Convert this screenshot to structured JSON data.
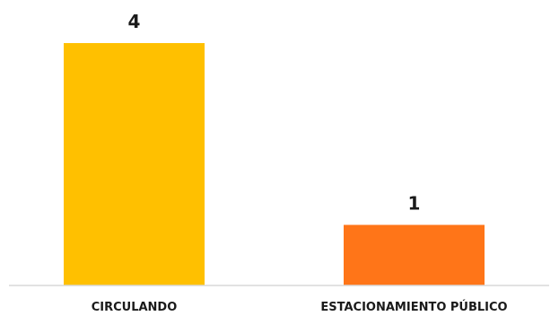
{
  "chart_data": {
    "type": "bar",
    "categories": [
      "CIRCULANDO",
      "ESTACIONAMIENTO PÚBLICO"
    ],
    "values": [
      4,
      1
    ],
    "colors": [
      "#FFC000",
      "#FF7518"
    ],
    "ylim": [
      0,
      4
    ],
    "grid": false,
    "legend": "none",
    "axis_color": "#d9d9d9",
    "label_color": "#1a1a1a"
  }
}
